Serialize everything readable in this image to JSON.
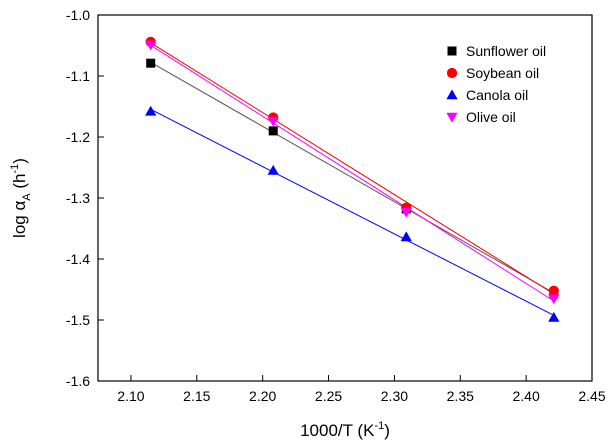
{
  "chart_data": {
    "type": "scatter",
    "xlabel": "1000/T (K⁻¹)",
    "ylabel": "log αA (h⁻¹)",
    "xlim": [
      2.075,
      2.45
    ],
    "ylim": [
      -1.6,
      -1.0
    ],
    "xticks": [
      2.1,
      2.15,
      2.2,
      2.25,
      2.3,
      2.35,
      2.4,
      2.45
    ],
    "xtick_labels": [
      "2.10",
      "2.15",
      "2.20",
      "2.25",
      "2.30",
      "2.35",
      "2.40",
      "2.45"
    ],
    "yticks": [
      -1.6,
      -1.5,
      -1.4,
      -1.3,
      -1.2,
      -1.1,
      -1.0
    ],
    "ytick_labels": [
      "-1.6",
      "-1.5",
      "-1.4",
      "-1.3",
      "-1.2",
      "-1.1",
      "-1.0"
    ],
    "grid": false,
    "legend_position": "top-right",
    "series": [
      {
        "name": "Sunflower oil",
        "marker": "square",
        "color": "#000000",
        "line_color": "#555555",
        "x": [
          2.115,
          2.208,
          2.309,
          2.421
        ],
        "y": [
          -1.079,
          -1.19,
          -1.318,
          -1.456
        ]
      },
      {
        "name": "Soybean oil",
        "marker": "circle",
        "color": "#ff0000",
        "line_color": "#ff0000",
        "x": [
          2.115,
          2.208,
          2.309,
          2.421
        ],
        "y": [
          -1.044,
          -1.168,
          -1.316,
          -1.452
        ]
      },
      {
        "name": "Canola oil",
        "marker": "triangle-up",
        "color": "#0000ff",
        "line_color": "#0000ff",
        "x": [
          2.115,
          2.208,
          2.309,
          2.421
        ],
        "y": [
          -1.158,
          -1.255,
          -1.364,
          -1.496
        ]
      },
      {
        "name": "Olive oil",
        "marker": "triangle-down",
        "color": "#ff00ff",
        "line_color": "#ff00ff",
        "x": [
          2.115,
          2.208,
          2.309,
          2.421
        ],
        "y": [
          -1.049,
          -1.174,
          -1.323,
          -1.465
        ]
      }
    ]
  }
}
